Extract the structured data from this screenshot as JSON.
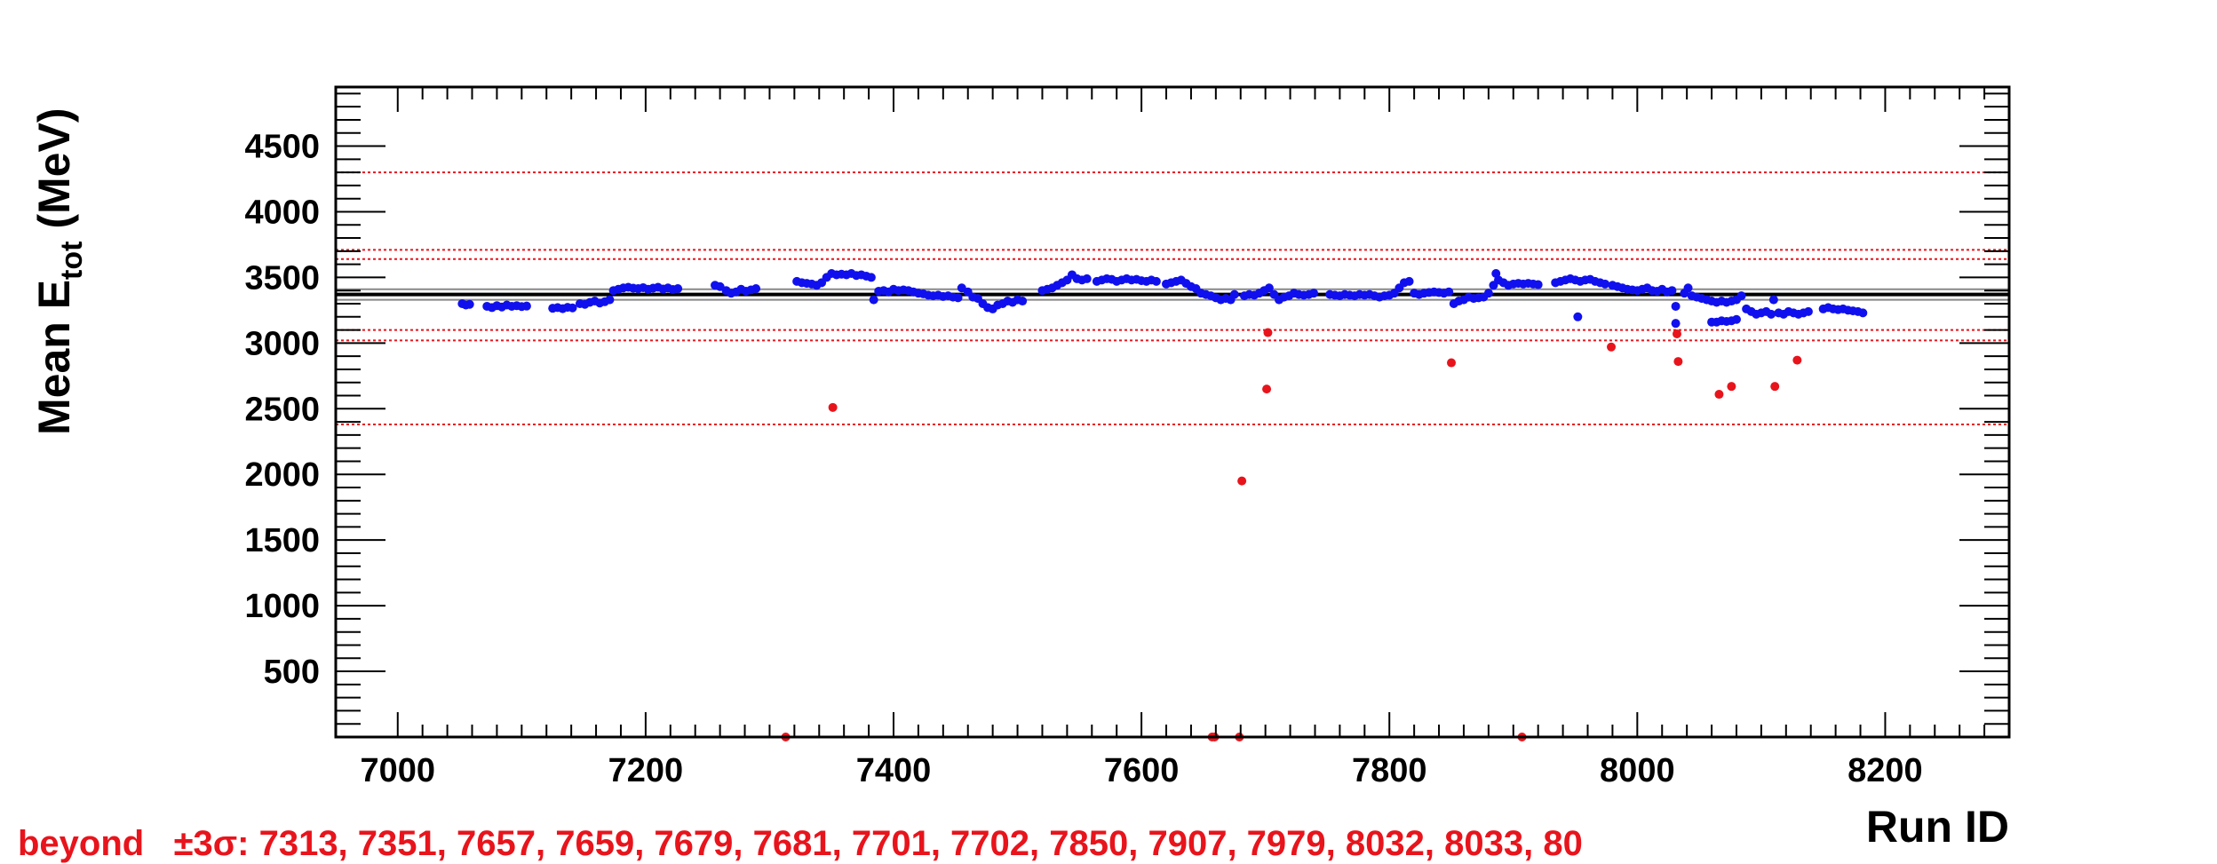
{
  "chart_data": {
    "type": "scatter",
    "title": "",
    "xlabel": "Run ID",
    "ylabel": {
      "main": "Mean E",
      "sub": "tot",
      "unit": " (MeV)"
    },
    "xlim": [
      6950,
      8300
    ],
    "ylim": [
      0,
      4950
    ],
    "x_ticks": [
      7000,
      7200,
      7400,
      7600,
      7800,
      8000,
      8200
    ],
    "y_ticks": [
      500,
      1000,
      1500,
      2000,
      2500,
      3000,
      3500,
      4000,
      4500
    ],
    "reference_lines": {
      "mean": 3370,
      "mean_band": [
        3330,
        3410
      ],
      "sigma_lines": [
        4300,
        3710,
        3640,
        3100,
        3020,
        2380
      ]
    },
    "colors": {
      "normal": "#1010ee",
      "outlier": "#e8141c",
      "mean": "#000000",
      "band": "#888888",
      "sigma": "#e8141c"
    },
    "series": [
      {
        "name": "",
        "color": "#1010ee",
        "points": [
          [
            7052,
            3300
          ],
          [
            7055,
            3290
          ],
          [
            7058,
            3295
          ],
          [
            7072,
            3280
          ],
          [
            7076,
            3270
          ],
          [
            7080,
            3285
          ],
          [
            7084,
            3275
          ],
          [
            7088,
            3290
          ],
          [
            7092,
            3280
          ],
          [
            7096,
            3285
          ],
          [
            7100,
            3278
          ],
          [
            7104,
            3282
          ],
          [
            7125,
            3265
          ],
          [
            7129,
            3270
          ],
          [
            7133,
            3262
          ],
          [
            7137,
            3272
          ],
          [
            7141,
            3268
          ],
          [
            7147,
            3300
          ],
          [
            7151,
            3295
          ],
          [
            7155,
            3310
          ],
          [
            7159,
            3320
          ],
          [
            7163,
            3305
          ],
          [
            7167,
            3315
          ],
          [
            7171,
            3330
          ],
          [
            7174,
            3400
          ],
          [
            7178,
            3410
          ],
          [
            7182,
            3420
          ],
          [
            7186,
            3425
          ],
          [
            7190,
            3418
          ],
          [
            7194,
            3415
          ],
          [
            7198,
            3422
          ],
          [
            7202,
            3410
          ],
          [
            7206,
            3418
          ],
          [
            7210,
            3425
          ],
          [
            7214,
            3412
          ],
          [
            7218,
            3420
          ],
          [
            7222,
            3408
          ],
          [
            7226,
            3415
          ],
          [
            7256,
            3440
          ],
          [
            7260,
            3430
          ],
          [
            7265,
            3400
          ],
          [
            7269,
            3380
          ],
          [
            7273,
            3390
          ],
          [
            7277,
            3410
          ],
          [
            7281,
            3395
          ],
          [
            7285,
            3405
          ],
          [
            7289,
            3415
          ],
          [
            7322,
            3470
          ],
          [
            7326,
            3460
          ],
          [
            7330,
            3455
          ],
          [
            7334,
            3450
          ],
          [
            7338,
            3440
          ],
          [
            7342,
            3460
          ],
          [
            7346,
            3500
          ],
          [
            7350,
            3530
          ],
          [
            7354,
            3520
          ],
          [
            7358,
            3525
          ],
          [
            7362,
            3520
          ],
          [
            7366,
            3530
          ],
          [
            7370,
            3515
          ],
          [
            7374,
            3520
          ],
          [
            7378,
            3510
          ],
          [
            7382,
            3500
          ],
          [
            7384,
            3330
          ],
          [
            7388,
            3395
          ],
          [
            7392,
            3400
          ],
          [
            7396,
            3390
          ],
          [
            7400,
            3410
          ],
          [
            7404,
            3400
          ],
          [
            7408,
            3405
          ],
          [
            7412,
            3400
          ],
          [
            7416,
            3390
          ],
          [
            7420,
            3380
          ],
          [
            7424,
            3375
          ],
          [
            7428,
            3365
          ],
          [
            7432,
            3360
          ],
          [
            7436,
            3365
          ],
          [
            7440,
            3355
          ],
          [
            7444,
            3360
          ],
          [
            7448,
            3350
          ],
          [
            7452,
            3345
          ],
          [
            7455,
            3420
          ],
          [
            7460,
            3390
          ],
          [
            7464,
            3350
          ],
          [
            7468,
            3340
          ],
          [
            7472,
            3300
          ],
          [
            7476,
            3270
          ],
          [
            7480,
            3260
          ],
          [
            7484,
            3290
          ],
          [
            7488,
            3300
          ],
          [
            7492,
            3320
          ],
          [
            7496,
            3310
          ],
          [
            7500,
            3330
          ],
          [
            7504,
            3320
          ],
          [
            7520,
            3400
          ],
          [
            7524,
            3410
          ],
          [
            7528,
            3420
          ],
          [
            7532,
            3440
          ],
          [
            7536,
            3460
          ],
          [
            7540,
            3480
          ],
          [
            7544,
            3520
          ],
          [
            7548,
            3490
          ],
          [
            7552,
            3480
          ],
          [
            7556,
            3490
          ],
          [
            7564,
            3470
          ],
          [
            7568,
            3480
          ],
          [
            7572,
            3490
          ],
          [
            7576,
            3485
          ],
          [
            7580,
            3470
          ],
          [
            7584,
            3480
          ],
          [
            7588,
            3490
          ],
          [
            7592,
            3480
          ],
          [
            7596,
            3485
          ],
          [
            7600,
            3475
          ],
          [
            7604,
            3470
          ],
          [
            7608,
            3480
          ],
          [
            7612,
            3470
          ],
          [
            7620,
            3450
          ],
          [
            7624,
            3460
          ],
          [
            7628,
            3470
          ],
          [
            7632,
            3480
          ],
          [
            7636,
            3455
          ],
          [
            7640,
            3430
          ],
          [
            7644,
            3415
          ],
          [
            7648,
            3380
          ],
          [
            7652,
            3370
          ],
          [
            7656,
            3360
          ],
          [
            7660,
            3345
          ],
          [
            7664,
            3330
          ],
          [
            7668,
            3340
          ],
          [
            7672,
            3330
          ],
          [
            7675,
            3370
          ],
          [
            7683,
            3360
          ],
          [
            7687,
            3370
          ],
          [
            7691,
            3365
          ],
          [
            7695,
            3380
          ],
          [
            7699,
            3400
          ],
          [
            7703,
            3420
          ],
          [
            7707,
            3370
          ],
          [
            7711,
            3330
          ],
          [
            7715,
            3350
          ],
          [
            7719,
            3360
          ],
          [
            7723,
            3380
          ],
          [
            7727,
            3370
          ],
          [
            7731,
            3365
          ],
          [
            7735,
            3370
          ],
          [
            7739,
            3380
          ],
          [
            7752,
            3370
          ],
          [
            7756,
            3365
          ],
          [
            7760,
            3360
          ],
          [
            7764,
            3370
          ],
          [
            7768,
            3365
          ],
          [
            7772,
            3360
          ],
          [
            7776,
            3370
          ],
          [
            7780,
            3365
          ],
          [
            7784,
            3370
          ],
          [
            7788,
            3360
          ],
          [
            7792,
            3350
          ],
          [
            7796,
            3360
          ],
          [
            7800,
            3365
          ],
          [
            7804,
            3380
          ],
          [
            7808,
            3420
          ],
          [
            7812,
            3460
          ],
          [
            7816,
            3470
          ],
          [
            7820,
            3380
          ],
          [
            7824,
            3370
          ],
          [
            7828,
            3380
          ],
          [
            7832,
            3385
          ],
          [
            7836,
            3390
          ],
          [
            7840,
            3385
          ],
          [
            7844,
            3380
          ],
          [
            7848,
            3390
          ],
          [
            7852,
            3300
          ],
          [
            7856,
            3320
          ],
          [
            7860,
            3330
          ],
          [
            7864,
            3350
          ],
          [
            7868,
            3340
          ],
          [
            7872,
            3345
          ],
          [
            7876,
            3350
          ],
          [
            7880,
            3380
          ],
          [
            7884,
            3440
          ],
          [
            7886,
            3530
          ],
          [
            7888,
            3480
          ],
          [
            7892,
            3460
          ],
          [
            7896,
            3440
          ],
          [
            7900,
            3450
          ],
          [
            7904,
            3455
          ],
          [
            7908,
            3450
          ],
          [
            7912,
            3455
          ],
          [
            7916,
            3450
          ],
          [
            7920,
            3445
          ],
          [
            7934,
            3460
          ],
          [
            7938,
            3470
          ],
          [
            7942,
            3480
          ],
          [
            7946,
            3490
          ],
          [
            7950,
            3480
          ],
          [
            7954,
            3470
          ],
          [
            7958,
            3480
          ],
          [
            7962,
            3485
          ],
          [
            7966,
            3470
          ],
          [
            7970,
            3460
          ],
          [
            7974,
            3450
          ],
          [
            7952,
            3200
          ],
          [
            7980,
            3440
          ],
          [
            7984,
            3430
          ],
          [
            7988,
            3420
          ],
          [
            7992,
            3410
          ],
          [
            7996,
            3405
          ],
          [
            8000,
            3400
          ],
          [
            8004,
            3410
          ],
          [
            8008,
            3420
          ],
          [
            8012,
            3400
          ],
          [
            8016,
            3395
          ],
          [
            8020,
            3410
          ],
          [
            8024,
            3390
          ],
          [
            8028,
            3400
          ],
          [
            8031,
            3280
          ],
          [
            8031,
            3150
          ],
          [
            8038,
            3380
          ],
          [
            8041,
            3420
          ],
          [
            8044,
            3360
          ],
          [
            8048,
            3350
          ],
          [
            8052,
            3340
          ],
          [
            8056,
            3330
          ],
          [
            8060,
            3320
          ],
          [
            8064,
            3310
          ],
          [
            8068,
            3320
          ],
          [
            8072,
            3310
          ],
          [
            8076,
            3320
          ],
          [
            8080,
            3330
          ],
          [
            8084,
            3360
          ],
          [
            8088,
            3260
          ],
          [
            8092,
            3240
          ],
          [
            8096,
            3220
          ],
          [
            8100,
            3230
          ],
          [
            8104,
            3240
          ],
          [
            8108,
            3220
          ],
          [
            8110,
            3330
          ],
          [
            8114,
            3230
          ],
          [
            8118,
            3220
          ],
          [
            8122,
            3240
          ],
          [
            8126,
            3230
          ],
          [
            8130,
            3220
          ],
          [
            8134,
            3230
          ],
          [
            8138,
            3240
          ],
          [
            8150,
            3260
          ],
          [
            8154,
            3270
          ],
          [
            8158,
            3260
          ],
          [
            8162,
            3255
          ],
          [
            8166,
            3260
          ],
          [
            8170,
            3250
          ],
          [
            8174,
            3245
          ],
          [
            8178,
            3240
          ],
          [
            8182,
            3230
          ],
          [
            8060,
            3160
          ],
          [
            8064,
            3160
          ],
          [
            8068,
            3170
          ],
          [
            8072,
            3165
          ],
          [
            8076,
            3170
          ],
          [
            8080,
            3180
          ]
        ]
      },
      {
        "name": "",
        "color": "#e8141c",
        "points": [
          [
            7313,
            0
          ],
          [
            7351,
            2510
          ],
          [
            7657,
            0
          ],
          [
            7659,
            0
          ],
          [
            7679,
            0
          ],
          [
            7681,
            1950
          ],
          [
            7701,
            2650
          ],
          [
            7702,
            3080
          ],
          [
            7850,
            2850
          ],
          [
            7907,
            0
          ],
          [
            7979,
            2970
          ],
          [
            8032,
            3070
          ],
          [
            8033,
            2860
          ],
          [
            8066,
            2610
          ],
          [
            8076,
            2670
          ],
          [
            8111,
            2670
          ],
          [
            8129,
            2870
          ]
        ]
      }
    ]
  },
  "footer": {
    "label": "beyond",
    "text": "±3σ: 7313, 7351, 7657, 7659, 7679, 7681, 7701, 7702, 7850, 7907, 7979, 8032, 8033, 80"
  }
}
